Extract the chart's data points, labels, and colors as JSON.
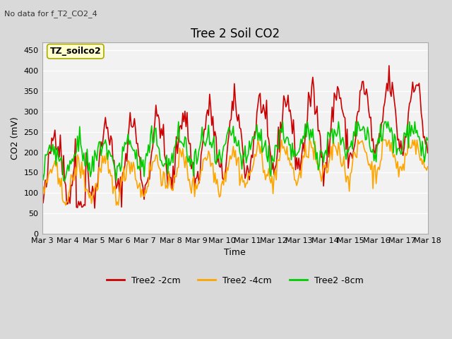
{
  "title": "Tree 2 Soil CO2",
  "subtitle": "No data for f_T2_CO2_4",
  "xlabel": "Time",
  "ylabel": "CO2 (mV)",
  "ylim": [
    0,
    470
  ],
  "yticks": [
    0,
    50,
    100,
    150,
    200,
    250,
    300,
    350,
    400,
    450
  ],
  "xtick_labels": [
    "Mar 3",
    "Mar 4",
    "Mar 5",
    "Mar 6",
    "Mar 7",
    "Mar 8",
    "Mar 9",
    "Mar 10",
    "Mar 11",
    "Mar 12",
    "Mar 13",
    "Mar 14",
    "Mar 15",
    "Mar 16",
    "Mar 17",
    "Mar 18"
  ],
  "color_2cm": "#cc0000",
  "color_4cm": "#ffa500",
  "color_8cm": "#00cc00",
  "legend_labels": [
    "Tree2 -2cm",
    "Tree2 -4cm",
    "Tree2 -8cm"
  ],
  "annotation_text": "TZ_soilco2",
  "linewidth": 1.2,
  "n_days": 15,
  "pts_per_day": 24
}
